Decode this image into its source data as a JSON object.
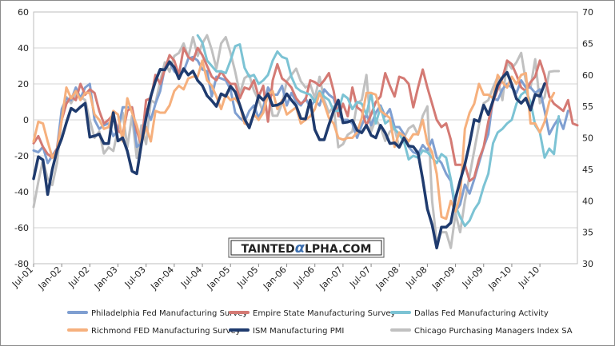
{
  "chart_data": {
    "type": "line",
    "title": "",
    "xlabel": "",
    "ylabel": "",
    "watermark": "TAINTEDALPHA.COM",
    "ylim_left": [
      -80,
      60
    ],
    "yticks_left": [
      "60",
      "40",
      "20",
      "0",
      "-20",
      "-40",
      "-60",
      "-80"
    ],
    "ylim_right": [
      30,
      70
    ],
    "yticks_right": [
      "70",
      "65",
      "60",
      "55",
      "50",
      "45",
      "40",
      "35",
      "30"
    ],
    "x_dates": [
      "2001-07",
      "2011-03"
    ],
    "xticks": [
      "Jul-01",
      "Jan-02",
      "Jul-02",
      "Jan-03",
      "Jul-03",
      "Jan-04",
      "Jul-04",
      "Jan-05",
      "Jul-05",
      "Jan-06",
      "Jul-06",
      "Jan-07",
      "Jul-07",
      "Jan-08",
      "Jul-08",
      "Jan-09",
      "Jul-09",
      "Jan-10",
      "Jul-10"
    ],
    "grid": true,
    "legend_position": "bottom",
    "series": [
      {
        "name": "Philadelphia Fed Manufacturing Survey",
        "color": "#7f9fd1",
        "axis": "left",
        "start": "2001-07",
        "values": [
          -17,
          -18,
          -15,
          -24,
          -20,
          -16,
          6,
          12,
          11,
          18,
          12,
          18,
          20,
          0,
          -5,
          -3,
          -2,
          -9,
          -6,
          7,
          7,
          7,
          -15,
          -13,
          6,
          0,
          9,
          16,
          29,
          32,
          27,
          25,
          27,
          34,
          35,
          33,
          28,
          27,
          13,
          24,
          23,
          22,
          17,
          4,
          1,
          -1,
          5,
          8,
          1,
          7,
          18,
          14,
          14,
          19,
          8,
          15,
          10,
          8,
          12,
          7,
          11,
          8,
          17,
          14,
          12,
          3,
          0,
          0,
          -2,
          -10,
          -3,
          3,
          -3,
          4,
          8,
          2,
          6,
          -4,
          -4,
          -8,
          -15,
          -18,
          -19,
          -14,
          -17,
          -11,
          -21,
          -24,
          -30,
          -34,
          -51,
          -47,
          -36,
          -41,
          -33,
          -24,
          -15,
          -8,
          12,
          11,
          17,
          20,
          18,
          15,
          22,
          18,
          18,
          15,
          17,
          5,
          -8,
          -3,
          1,
          -5,
          5
        ],
        "rel_ts": []
      },
      {
        "name": "Empire State Manufacturing Survey",
        "color": "#d47a74",
        "axis": "left",
        "start": "2001-07",
        "values": [
          -13,
          -9,
          -15,
          -19,
          -21,
          -16,
          0,
          9,
          13,
          11,
          20,
          14,
          17,
          15,
          5,
          -2,
          0,
          3,
          -6,
          -8,
          5,
          7,
          -6,
          -14,
          11,
          12,
          25,
          20,
          28,
          36,
          33,
          25,
          40,
          35,
          33,
          40,
          36,
          30,
          24,
          22,
          27,
          23,
          20,
          20,
          12,
          18,
          17,
          22,
          13,
          19,
          -1,
          22,
          31,
          23,
          21,
          18,
          12,
          9,
          11,
          22,
          21,
          19,
          22,
          26,
          16,
          2,
          9,
          2,
          18,
          7,
          5,
          -3,
          3,
          10,
          13,
          26,
          19,
          13,
          24,
          23,
          20,
          7,
          18,
          28,
          18,
          9,
          0,
          -4,
          -2,
          -11,
          -25,
          -25,
          -25,
          -34,
          -32,
          -22,
          -15,
          -1,
          10,
          17,
          23,
          33,
          31,
          25,
          18,
          16,
          21,
          24,
          33,
          25,
          13,
          9,
          7,
          5,
          11,
          -2,
          -3
        ],
        "rel_ts": []
      },
      {
        "name": "Dallas Fed Manufacturing Activity",
        "color": "#7cc3d4",
        "axis": "left",
        "start": "2004-06",
        "values": [
          47,
          43,
          33,
          30,
          27,
          27,
          26,
          33,
          41,
          42,
          29,
          24,
          25,
          20,
          22,
          25,
          33,
          38,
          35,
          34,
          24,
          18,
          16,
          15,
          14,
          10,
          16,
          13,
          11,
          5,
          5,
          14,
          12,
          6,
          10,
          9,
          3,
          15,
          -2,
          7,
          -2,
          0,
          -5,
          -8,
          -12,
          -22,
          -20,
          -21,
          -17,
          -18,
          -21,
          -24,
          -19,
          -21,
          -33,
          -48,
          -54,
          -59,
          -56,
          -50,
          -46,
          -37,
          -30,
          -13,
          -7,
          -5,
          -2,
          0,
          9,
          14,
          16,
          10,
          -3,
          -7,
          -21,
          -16,
          -19,
          2
        ],
        "rel_ts": []
      },
      {
        "name": "Richmond FED Manufacturing Survey",
        "color": "#f6b07d",
        "axis": "left",
        "start": "2001-07",
        "values": [
          -12,
          -1,
          -2,
          -12,
          -21,
          -17,
          0,
          18,
          12,
          16,
          11,
          15,
          15,
          3,
          0,
          -5,
          -4,
          5,
          3,
          -12,
          12,
          4,
          -3,
          -13,
          -4,
          -12,
          5,
          4,
          4,
          8,
          16,
          19,
          17,
          23,
          24,
          24,
          33,
          22,
          19,
          13,
          6,
          14,
          11,
          12,
          8,
          -2,
          -3,
          3,
          0,
          4,
          14,
          16,
          6,
          11,
          3,
          5,
          7,
          -2,
          0,
          2,
          6,
          15,
          9,
          1,
          -2,
          -10,
          -11,
          -10,
          -10,
          -7,
          1,
          15,
          15,
          14,
          5,
          3,
          1,
          -15,
          -7,
          -9,
          -12,
          -8,
          -8,
          0,
          -13,
          -18,
          -30,
          -54,
          -55,
          -45,
          -51,
          -42,
          -5,
          4,
          9,
          20,
          14,
          14,
          12,
          25,
          21,
          18,
          24,
          20,
          25,
          26,
          -2,
          -2,
          -7,
          -1,
          10,
          15
        ],
        "rel_ts": []
      },
      {
        "name": "ISM Manufacturing PMI",
        "color": "#1f3b6e",
        "axis": "right",
        "start": "2001-07",
        "values": [
          43.5,
          47.0,
          46.5,
          41.0,
          45.0,
          48.0,
          49.9,
          52.4,
          54.7,
          54.2,
          54.9,
          55.5,
          50.1,
          50.3,
          50.6,
          49.1,
          49.1,
          54.0,
          49.5,
          50.0,
          47.9,
          44.7,
          44.3,
          49.0,
          53.2,
          56.6,
          59.0,
          60.9,
          60.8,
          62.1,
          61.2,
          59.4,
          61.0,
          60.0,
          60.6,
          59.1,
          58.3,
          56.7,
          55.9,
          55.0,
          57.0,
          56.6,
          58.2,
          57.3,
          55.2,
          53.0,
          51.6,
          53.9,
          56.7,
          56.0,
          57.0,
          55.1,
          55.2,
          55.6,
          57.0,
          56.0,
          55.1,
          53.1,
          53.0,
          56.0,
          51.3,
          49.7,
          49.7,
          52.1,
          54.3,
          56.0,
          52.4,
          52.5,
          52.8,
          51.2,
          50.8,
          52.0,
          50.4,
          50.0,
          52.0,
          50.8,
          49.1,
          49.2,
          48.5,
          50.0,
          48.7,
          48.6,
          47.6,
          43.4,
          38.7,
          36.2,
          32.5,
          35.8,
          35.8,
          36.5,
          40.4,
          43.2,
          45.8,
          49.1,
          52.9,
          52.6,
          55.2,
          53.7,
          55.9,
          58.4,
          59.6,
          60.4,
          58.5,
          56.2,
          55.5,
          56.3,
          54.4,
          56.9,
          56.6,
          58.6
        ],
        "rel_ts": []
      },
      {
        "name": "Chicago Purchasing Managers Index SA",
        "color": "#c0c0c0",
        "axis": "right",
        "start": "2001-07",
        "values": [
          39.0,
          43.0,
          46.5,
          43.5,
          42.5,
          46.0,
          53.0,
          56.5,
          55.5,
          57.0,
          56.5,
          56.0,
          52.8,
          50.0,
          51.0,
          47.5,
          48.5,
          47.9,
          51.3,
          54.0,
          48.5,
          53.5,
          46.8,
          52.0,
          49.0,
          56.0,
          55.5,
          59.0,
          62.0,
          60.5,
          63.0,
          63.5,
          65.0,
          62.8,
          66.0,
          63.0,
          65.0,
          66.3,
          64.0,
          61.0,
          65.0,
          66.0,
          63.5,
          60.5,
          57.0,
          59.5,
          60.0,
          57.5,
          56.0,
          54.0,
          57.5,
          53.5,
          53.5,
          55.5,
          59.0,
          60.0,
          61.0,
          59.0,
          58.0,
          58.5,
          56.3,
          59.7,
          56.0,
          54.0,
          55.0,
          48.5,
          49.0,
          50.5,
          51.0,
          55.5,
          56.0,
          60.0,
          51.0,
          53.0,
          51.7,
          49.5,
          51.0,
          51.5,
          48.5,
          50.0,
          51.5,
          52.0,
          50.5,
          53.5,
          55.0,
          40.0,
          33.5,
          35.0,
          35.0,
          32.5,
          38.0,
          35.0,
          40.0,
          44.0,
          48.0,
          52.0,
          55.5,
          56.0,
          58.0,
          59.7,
          56.0,
          62.0,
          61.0,
          62.0,
          63.5,
          59.0,
          58.0,
          62.5,
          55.5,
          56.5,
          60.5,
          60.6,
          60.6
        ],
        "rel_ts": []
      }
    ]
  },
  "legend": [
    {
      "label": "Philadelphia Fed Manufacturing Survey",
      "color": "#7f9fd1"
    },
    {
      "label": "Empire State Manufacturing Survey",
      "color": "#d47a74"
    },
    {
      "label": "Dallas Fed Manufacturing Activity",
      "color": "#7cc3d4"
    },
    {
      "label": "Richmond FED Manufacturing Survey",
      "color": "#f6b07d"
    },
    {
      "label": "ISM Manufacturing PMI",
      "color": "#1f3b6e"
    },
    {
      "label": "Chicago Purchasing Managers Index SA",
      "color": "#c0c0c0"
    }
  ],
  "watermark": {
    "left": "TAINTED",
    "alpha": "α",
    "right": "LPHA.COM"
  }
}
